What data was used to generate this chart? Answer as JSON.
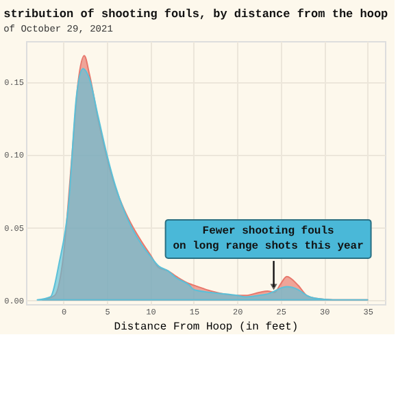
{
  "chart_data": {
    "type": "area",
    "title": "stribution of shooting fouls, by distance from the hoop",
    "subtitle": "of October 29, 2021",
    "xlabel": "Distance From Hoop (in feet)",
    "series": [
      {
        "color": "#e8776b",
        "x": [
          -2.4,
          -1,
          0,
          1,
          1.7,
          2.4,
          3,
          4,
          5,
          6,
          7,
          8,
          9,
          10,
          11,
          12,
          13,
          14.5,
          15,
          17,
          20,
          21,
          22.5,
          23.5,
          24.3,
          25,
          25.7,
          27,
          28,
          29,
          31,
          35
        ],
        "values": [
          0,
          0.003,
          0.03,
          0.1,
          0.15,
          0.168,
          0.155,
          0.124,
          0.098,
          0.077,
          0.062,
          0.05,
          0.04,
          0.031,
          0.022,
          0.02,
          0.016,
          0.011,
          0.01,
          0.006,
          0.003,
          0.003,
          0.005,
          0.006,
          0.005,
          0.011,
          0.016,
          0.01,
          0.003,
          0.001,
          0,
          0
        ]
      },
      {
        "color": "#5bc0d8",
        "x": [
          -3,
          -1.5,
          -0.5,
          0.6,
          1.5,
          2.25,
          3,
          4,
          5,
          6,
          7,
          8,
          9,
          10,
          11,
          12,
          13,
          14.5,
          15,
          17,
          20,
          21,
          22.5,
          23.5,
          24.3,
          25,
          25.7,
          27,
          28,
          29,
          31,
          35
        ],
        "values": [
          0,
          0.002,
          0.025,
          0.066,
          0.14,
          0.159,
          0.152,
          0.126,
          0.1,
          0.078,
          0.061,
          0.048,
          0.038,
          0.03,
          0.023,
          0.02,
          0.015,
          0.01,
          0.007,
          0.005,
          0.003,
          0.002,
          0.003,
          0.004,
          0.006,
          0.008,
          0.009,
          0.007,
          0.003,
          0.001,
          0,
          0
        ]
      }
    ],
    "xlim": [
      -4.3,
      37
    ],
    "xticks": [
      0,
      5,
      10,
      15,
      20,
      25,
      30,
      35
    ],
    "ylim": [
      -0.003,
      0.178
    ],
    "yticks": [
      {
        "value": 0,
        "label": "0.00"
      },
      {
        "value": 0.05,
        "label": "0.05"
      },
      {
        "value": 0.1,
        "label": "0.10"
      },
      {
        "value": 0.15,
        "label": "0.15"
      }
    ],
    "annotations": [
      {
        "text": "Fewer shooting fouls\non long range shots this year",
        "x": 24.2,
        "y": 0.006
      }
    ],
    "grid": true
  }
}
